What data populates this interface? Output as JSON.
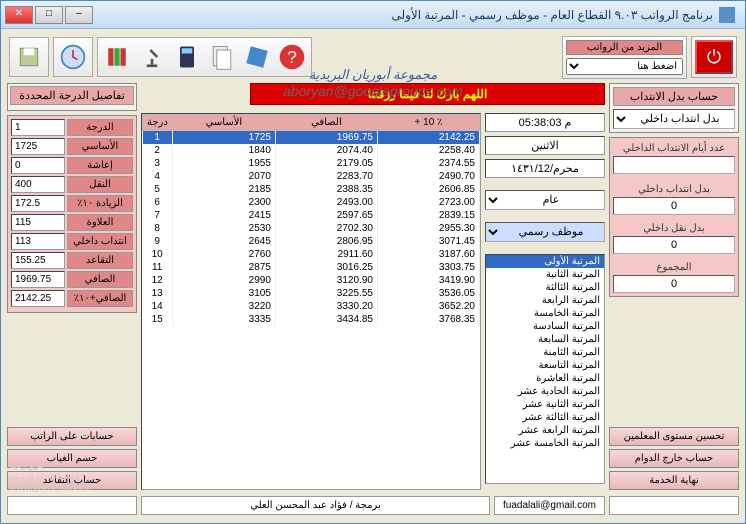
{
  "window": {
    "title": "برنامج الرواتب ٩.٠٣     القطاع العام - موظف رسمي - المرتبة الأولى"
  },
  "toolbar": {
    "more_salaries_label": "المزيد من الرواتب",
    "select_placeholder": "اضغط هنا"
  },
  "watermark": {
    "ar": "مجموعة أبوريان البريدية",
    "email": "aboryan@googlegroups.com"
  },
  "banner": "اللهم بارك لنا فيما رزقتنا",
  "clock": {
    "time": "م 05:38:03",
    "day": "الاثنين",
    "date": "محرم/١٤٣١/12"
  },
  "selectors": {
    "sector_label": "عام",
    "type_label": "موظف رسمي"
  },
  "ranks": [
    "المرتبة الأولى",
    "المرتبة الثانية",
    "المرتبة الثالثة",
    "المرتبة الرابعة",
    "المرتبة الخامسة",
    "المرتبة السادسة",
    "المرتبة السابعة",
    "المرتبة الثامنة",
    "المرتبة التاسعة",
    "المرتبة العاشرة",
    "المرتبة الحادية عشر",
    "المرتبة الثانية عشر",
    "المرتبة الثالثة عشر",
    "المرتبة الرابعة عشر",
    "المرتبة الخامسة عشر"
  ],
  "salary_table": {
    "headers": {
      "degree": "درجة",
      "basic": "الأساسي",
      "net": "الصافي",
      "plus10": "+ 10 ٪"
    },
    "rows": [
      {
        "d": 1,
        "b": "1725",
        "n": "1969.75",
        "p": "2142.25"
      },
      {
        "d": 2,
        "b": "1840",
        "n": "2074.40",
        "p": "2258.40"
      },
      {
        "d": 3,
        "b": "1955",
        "n": "2179.05",
        "p": "2374.55"
      },
      {
        "d": 4,
        "b": "2070",
        "n": "2283.70",
        "p": "2490.70"
      },
      {
        "d": 5,
        "b": "2185",
        "n": "2388.35",
        "p": "2606.85"
      },
      {
        "d": 6,
        "b": "2300",
        "n": "2493.00",
        "p": "2723.00"
      },
      {
        "d": 7,
        "b": "2415",
        "n": "2597.65",
        "p": "2839.15"
      },
      {
        "d": 8,
        "b": "2530",
        "n": "2702.30",
        "p": "2955.30"
      },
      {
        "d": 9,
        "b": "2645",
        "n": "2806.95",
        "p": "3071.45"
      },
      {
        "d": 10,
        "b": "2760",
        "n": "2911.60",
        "p": "3187.60"
      },
      {
        "d": 11,
        "b": "2875",
        "n": "3016.25",
        "p": "3303.75"
      },
      {
        "d": 12,
        "b": "2990",
        "n": "3120.90",
        "p": "3419.90"
      },
      {
        "d": 13,
        "b": "3105",
        "n": "3225.55",
        "p": "3536.05"
      },
      {
        "d": 14,
        "b": "3220",
        "n": "3330.20",
        "p": "3652.20"
      },
      {
        "d": 15,
        "b": "3335",
        "n": "3434.85",
        "p": "3768.35"
      }
    ]
  },
  "details": {
    "title": "تفاصيل الدرجة المحددة",
    "rows": [
      {
        "label": "الدرجة",
        "val": "1"
      },
      {
        "label": "الأساسي",
        "val": "1725"
      },
      {
        "label": "إعاشة",
        "val": "0"
      },
      {
        "label": "النقل",
        "val": "400"
      },
      {
        "label": "الزيادة ١٠٪",
        "val": "172.5"
      },
      {
        "label": "العلاوة",
        "val": "115"
      },
      {
        "label": "انتداب داخلي",
        "val": "113"
      },
      {
        "label": "التقاعد",
        "val": "155.25"
      },
      {
        "label": "الصافي",
        "val": "1969.75"
      },
      {
        "label": "الصافي+١٠٪",
        "val": "2142.25"
      }
    ]
  },
  "assignment": {
    "title": "حساب بدل الانتداب",
    "type_select": "بدل انتداب داخلي",
    "days_label": "عدد أيام الانتداب الداخلي",
    "days_val": "",
    "intern_label": "بدل انتداب داخلي",
    "intern_val": "0",
    "transport_label": "بدل نقل داخلي",
    "transport_val": "0",
    "total_label": "المجموع",
    "total_val": "0"
  },
  "left_buttons": [
    "حسابات على الراتب",
    "حسم الغياب",
    "حساب التقاعد"
  ],
  "right_buttons": [
    "تحسين مستوى المعلمين",
    "حساب خارج الدوام",
    "نهاية الخدمة"
  ],
  "footer": {
    "email": "fuadalali@gmail.com",
    "credit": "برمجة / فؤاد عبد المحسن العلي"
  },
  "corner_wm": {
    "l1": "غرو رنت",
    "l2": "منتديات غرورنـت",
    "l3": "www.grorenat.com"
  }
}
